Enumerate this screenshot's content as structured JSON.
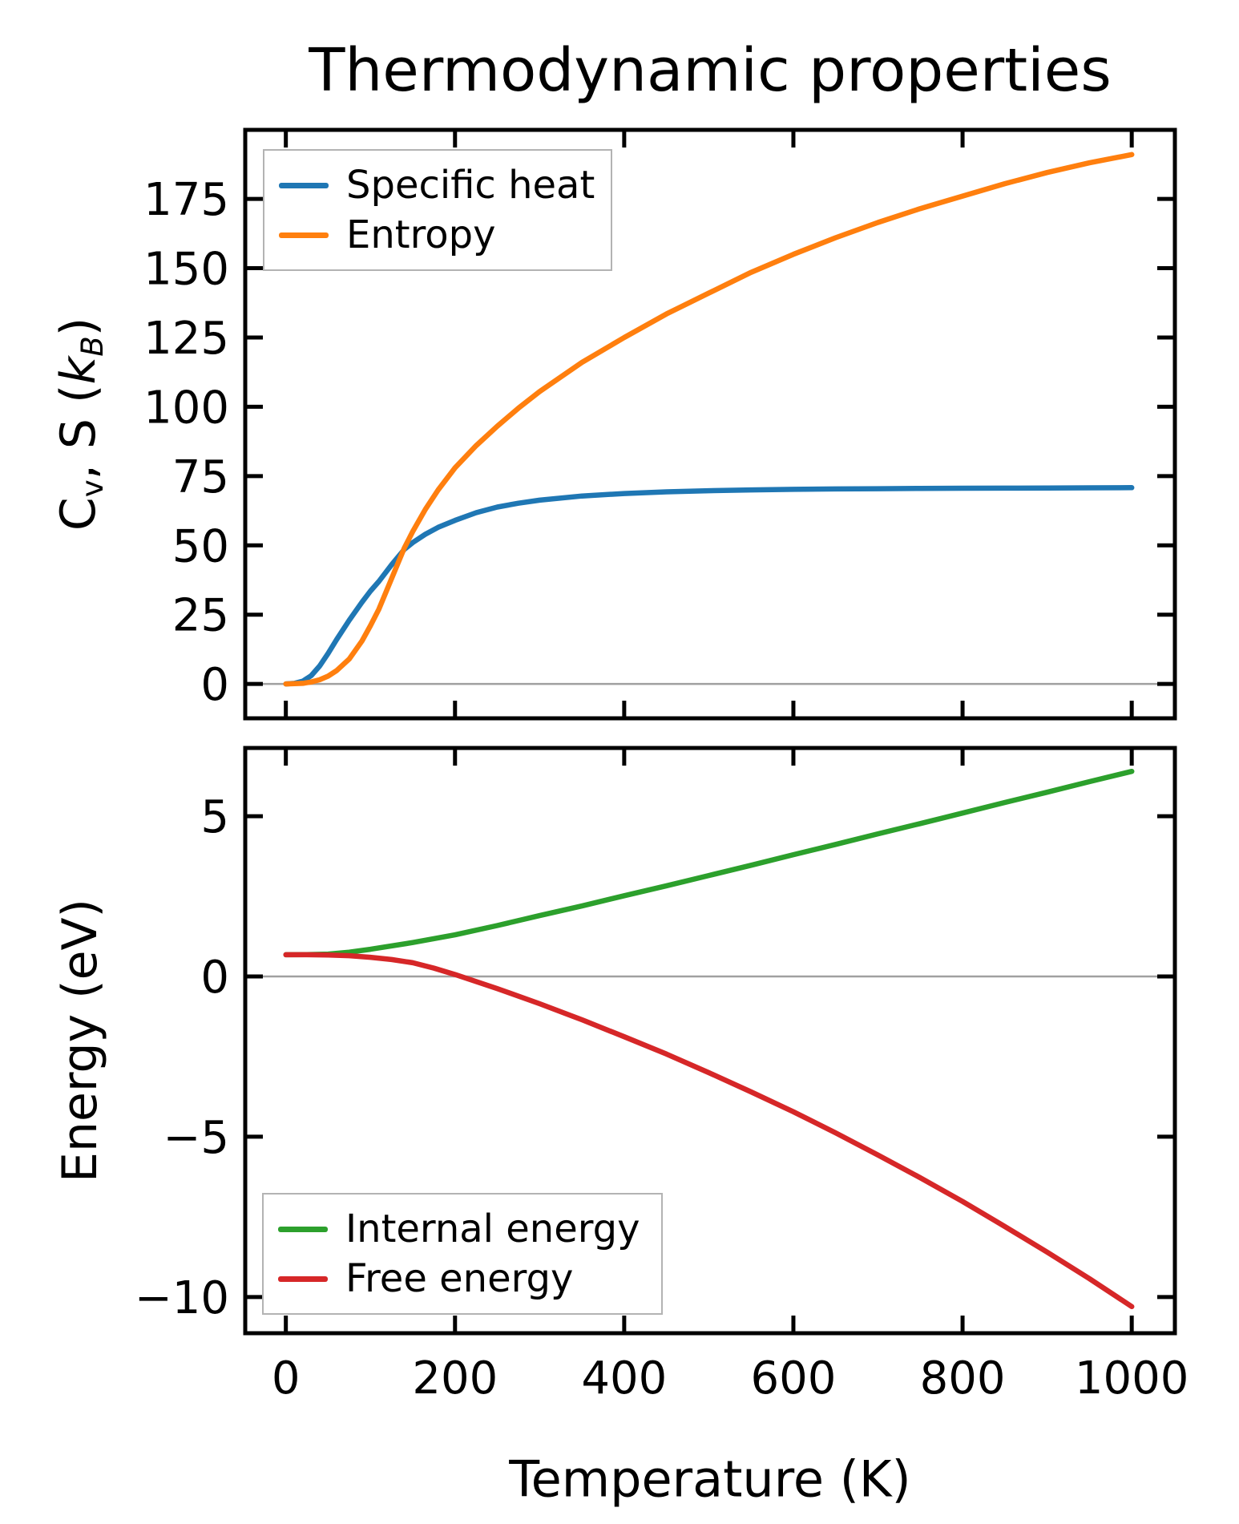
{
  "figure": {
    "title": "Thermodynamic properties",
    "background": "#ffffff",
    "text_color": "#000000",
    "spine_color": "#000000",
    "zero_line_color": "#a0a0a0",
    "legend_border_color": "#b3b3b3"
  },
  "chart_data": [
    {
      "type": "line",
      "title": "Thermodynamic properties",
      "xlabel": "",
      "ylabel": "C_v, S (k_B)",
      "ylabel_parts": [
        {
          "t": "C"
        },
        {
          "t": "v",
          "sub": true
        },
        {
          "t": ", S ("
        },
        {
          "t": "k",
          "i": true
        },
        {
          "t": "B",
          "sub": true,
          "i": true
        },
        {
          "t": ")"
        }
      ],
      "xlim": [
        -48,
        1051
      ],
      "ylim": [
        -12.4,
        199.9
      ],
      "xticks": [
        0,
        200,
        400,
        600,
        800,
        1000
      ],
      "xticklabels_visible": false,
      "yticks": [
        0,
        25,
        50,
        75,
        100,
        125,
        150,
        175
      ],
      "grid": false,
      "zero_line": true,
      "legend": {
        "position": "upper left",
        "entries": [
          "Specific heat",
          "Entropy"
        ]
      },
      "series": [
        {
          "name": "Specific heat",
          "color": "#1f77b4",
          "points": [
            [
              0,
              0
            ],
            [
              10,
              0.2
            ],
            [
              20,
              1
            ],
            [
              30,
              3
            ],
            [
              40,
              6.5
            ],
            [
              50,
              11
            ],
            [
              60,
              16
            ],
            [
              75,
              23
            ],
            [
              90,
              29.5
            ],
            [
              100,
              33.5
            ],
            [
              110,
              37
            ],
            [
              125,
              43
            ],
            [
              140,
              48.5
            ],
            [
              150,
              51
            ],
            [
              165,
              54
            ],
            [
              180,
              56.5
            ],
            [
              200,
              59
            ],
            [
              225,
              61.8
            ],
            [
              250,
              63.8
            ],
            [
              275,
              65.2
            ],
            [
              300,
              66.3
            ],
            [
              350,
              67.8
            ],
            [
              400,
              68.7
            ],
            [
              450,
              69.3
            ],
            [
              500,
              69.7
            ],
            [
              550,
              70
            ],
            [
              600,
              70.2
            ],
            [
              650,
              70.35
            ],
            [
              700,
              70.45
            ],
            [
              750,
              70.55
            ],
            [
              800,
              70.6
            ],
            [
              850,
              70.65
            ],
            [
              900,
              70.7
            ],
            [
              950,
              70.75
            ],
            [
              1000,
              70.8
            ]
          ]
        },
        {
          "name": "Entropy",
          "color": "#ff7f0e",
          "points": [
            [
              0,
              0
            ],
            [
              20,
              0.2
            ],
            [
              30,
              0.7
            ],
            [
              40,
              1.5
            ],
            [
              50,
              2.8
            ],
            [
              60,
              4.8
            ],
            [
              75,
              9
            ],
            [
              90,
              15.5
            ],
            [
              100,
              21
            ],
            [
              110,
              27
            ],
            [
              125,
              38
            ],
            [
              140,
              49
            ],
            [
              150,
              55
            ],
            [
              165,
              63
            ],
            [
              180,
              70
            ],
            [
              200,
              78
            ],
            [
              225,
              86
            ],
            [
              250,
              93
            ],
            [
              275,
              99.5
            ],
            [
              300,
              105.5
            ],
            [
              350,
              116
            ],
            [
              400,
              125
            ],
            [
              450,
              133.5
            ],
            [
              500,
              141
            ],
            [
              550,
              148.5
            ],
            [
              600,
              155
            ],
            [
              650,
              161
            ],
            [
              700,
              166.5
            ],
            [
              750,
              171.5
            ],
            [
              800,
              176
            ],
            [
              850,
              180.5
            ],
            [
              900,
              184.5
            ],
            [
              950,
              188
            ],
            [
              1000,
              191
            ]
          ]
        }
      ]
    },
    {
      "type": "line",
      "title": "",
      "xlabel": "Temperature (K)",
      "ylabel": "Energy (eV)",
      "ylabel_parts": [
        {
          "t": "Energy (eV)"
        }
      ],
      "xlim": [
        -48,
        1051
      ],
      "ylim": [
        -11.13,
        7.13
      ],
      "xticks": [
        0,
        200,
        400,
        600,
        800,
        1000
      ],
      "xticklabels_visible": true,
      "yticks": [
        -10,
        -5,
        0,
        5
      ],
      "grid": false,
      "zero_line": true,
      "legend": {
        "position": "lower left",
        "entries": [
          "Internal energy",
          "Free energy"
        ]
      },
      "series": [
        {
          "name": "Internal energy",
          "color": "#2ca02c",
          "points": [
            [
              0,
              0.68
            ],
            [
              25,
              0.685
            ],
            [
              50,
              0.7
            ],
            [
              75,
              0.76
            ],
            [
              100,
              0.85
            ],
            [
              150,
              1.06
            ],
            [
              200,
              1.3
            ],
            [
              250,
              1.59
            ],
            [
              300,
              1.9
            ],
            [
              350,
              2.2
            ],
            [
              400,
              2.52
            ],
            [
              450,
              2.83
            ],
            [
              500,
              3.15
            ],
            [
              550,
              3.47
            ],
            [
              600,
              3.8
            ],
            [
              650,
              4.12
            ],
            [
              700,
              4.45
            ],
            [
              750,
              4.77
            ],
            [
              800,
              5.1
            ],
            [
              850,
              5.43
            ],
            [
              900,
              5.75
            ],
            [
              950,
              6.08
            ],
            [
              1000,
              6.4
            ]
          ]
        },
        {
          "name": "Free energy",
          "color": "#d62728",
          "points": [
            [
              0,
              0.68
            ],
            [
              25,
              0.68
            ],
            [
              50,
              0.67
            ],
            [
              75,
              0.65
            ],
            [
              100,
              0.6
            ],
            [
              125,
              0.53
            ],
            [
              150,
              0.43
            ],
            [
              175,
              0.26
            ],
            [
              200,
              0.06
            ],
            [
              250,
              -0.38
            ],
            [
              300,
              -0.85
            ],
            [
              350,
              -1.35
            ],
            [
              400,
              -1.88
            ],
            [
              450,
              -2.42
            ],
            [
              500,
              -3.0
            ],
            [
              550,
              -3.6
            ],
            [
              600,
              -4.22
            ],
            [
              650,
              -4.88
            ],
            [
              700,
              -5.57
            ],
            [
              750,
              -6.28
            ],
            [
              800,
              -7.02
            ],
            [
              850,
              -7.8
            ],
            [
              900,
              -8.6
            ],
            [
              950,
              -9.43
            ],
            [
              1000,
              -10.3
            ]
          ]
        }
      ]
    }
  ]
}
